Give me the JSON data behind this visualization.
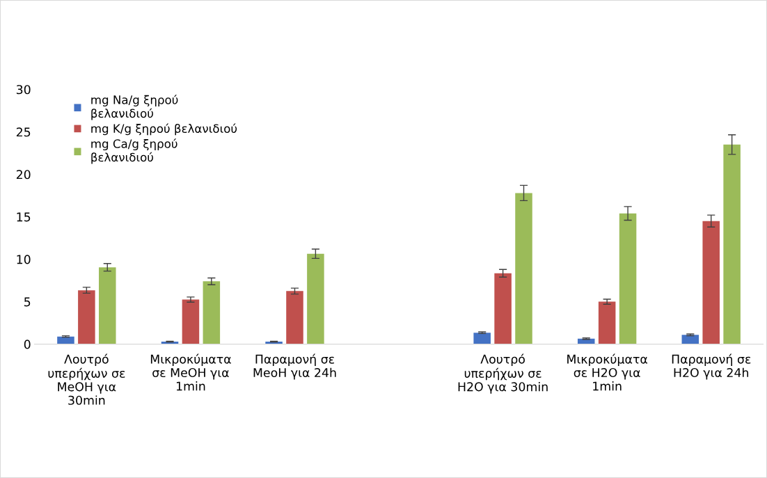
{
  "chart_data": {
    "type": "bar",
    "categories": [
      "Λουτρό\nυπερήχων σε\nMeOH για\n30min",
      "Μικροκύματα\nσε MeOH για\n1min",
      "Παραμονή σε\nMeoH για 24h",
      null,
      "Λουτρό\nυπερήχων σε\nH2O για 30min",
      "Μικροκύματα\nσε H2O για\n1min",
      "Παραμονή σε\nH2O για 24h"
    ],
    "series": [
      {
        "name": "mg Na/g ξηρού\nβελανιδιού",
        "color": "#4472c4",
        "values": [
          0.9,
          0.3,
          0.3,
          null,
          1.35,
          0.65,
          1.1
        ],
        "errors": [
          0.08,
          0.05,
          0.05,
          null,
          0.1,
          0.08,
          0.1
        ]
      },
      {
        "name": "mg K/g ξηρού βελανιδιού",
        "color": "#c0504d",
        "values": [
          6.35,
          5.25,
          6.25,
          null,
          8.35,
          5.0,
          14.5
        ],
        "errors": [
          0.35,
          0.3,
          0.35,
          null,
          0.45,
          0.3,
          0.7
        ]
      },
      {
        "name": "mg Ca/g ξηρού\nβελανιδιού",
        "color": "#9bbb59",
        "values": [
          9.05,
          7.4,
          10.65,
          null,
          17.8,
          15.4,
          23.5
        ],
        "errors": [
          0.45,
          0.4,
          0.55,
          null,
          0.9,
          0.8,
          1.15
        ]
      }
    ],
    "ylim": [
      0,
      30
    ],
    "yticks": [
      0,
      5,
      10,
      15,
      20,
      25,
      30
    ],
    "grid": false,
    "legend": "top left"
  }
}
